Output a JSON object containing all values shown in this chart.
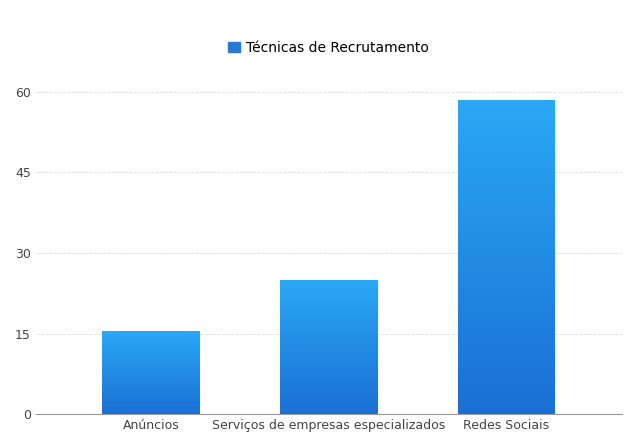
{
  "categories": [
    "Anúncios",
    "Serviços de empresas especializados",
    "Redes Sociais"
  ],
  "values": [
    15.5,
    25.0,
    58.5
  ],
  "legend_label": "Técnicas de Recrutamento",
  "legend_color": "#2979d4",
  "yticks": [
    0,
    15,
    30,
    45,
    60
  ],
  "ylim": [
    0,
    65
  ],
  "bar_color_top": "#29a8f5",
  "bar_color_bottom": "#1a6fd4",
  "background_color": "#ffffff",
  "grid_color": "#cccccc",
  "legend_fontsize": 10,
  "tick_fontsize": 9,
  "bar_width": 0.55,
  "tick_color": "#444444"
}
